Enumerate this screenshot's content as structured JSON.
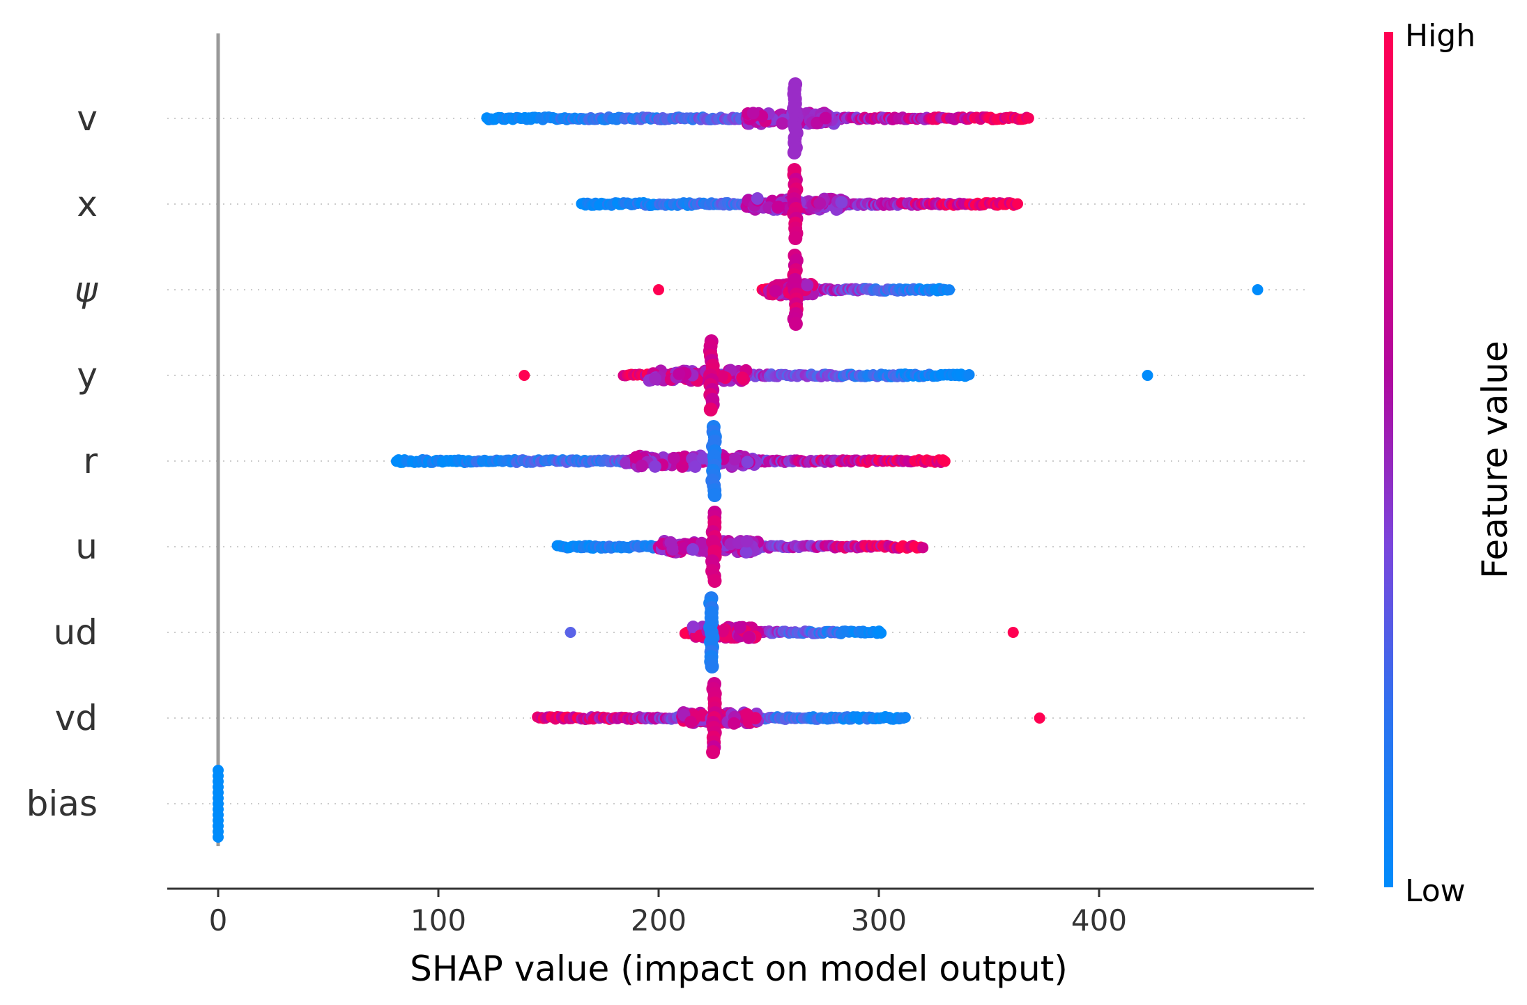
{
  "chart_data": {
    "type": "scatter",
    "subtype": "shap-beeswarm",
    "xlabel": "SHAP value (impact on model output)",
    "xlim": [
      -23,
      497
    ],
    "xticks": [
      0,
      100,
      200,
      300,
      400
    ],
    "tick_labels": [
      "0",
      "100",
      "200",
      "300",
      "400"
    ],
    "zero_line": 0,
    "features": [
      {
        "name": "v",
        "center": 262,
        "min": 122,
        "max": 368,
        "core_range": [
          240,
          280
        ],
        "low_side": "left",
        "outliers": []
      },
      {
        "name": "x",
        "center": 262,
        "min": 165,
        "max": 363,
        "core_range": [
          240,
          285
        ],
        "low_side": "left",
        "outliers": []
      },
      {
        "name": "ψ",
        "center": 262,
        "min": 247,
        "max": 332,
        "core_range": [
          250,
          270
        ],
        "low_side": "right",
        "outliers": [
          {
            "x": 200,
            "value": "high"
          },
          {
            "x": 472,
            "value": "low"
          }
        ]
      },
      {
        "name": "y",
        "center": 224,
        "min": 184,
        "max": 341,
        "core_range": [
          195,
          240
        ],
        "low_side": "right",
        "outliers": [
          {
            "x": 139,
            "value": "high"
          },
          {
            "x": 422,
            "value": "low"
          }
        ]
      },
      {
        "name": "r",
        "center": 225,
        "min": 81,
        "max": 330,
        "core_range": [
          185,
          245
        ],
        "low_side": "left",
        "outliers": []
      },
      {
        "name": "u",
        "center": 225,
        "min": 154,
        "max": 320,
        "core_range": [
          200,
          245
        ],
        "low_side": "left",
        "outliers": []
      },
      {
        "name": "ud",
        "center": 224,
        "min": 212,
        "max": 301,
        "core_range": [
          215,
          245
        ],
        "low_side": "right",
        "outliers": [
          {
            "x": 160,
            "value": "mid"
          },
          {
            "x": 361,
            "value": "high"
          }
        ]
      },
      {
        "name": "vd",
        "center": 225,
        "min": 145,
        "max": 312,
        "core_range": [
          210,
          245
        ],
        "low_side": "right",
        "outliers": [
          {
            "x": 373,
            "value": "high"
          }
        ]
      },
      {
        "name": "bias",
        "center": 0,
        "min": 0,
        "max": 0,
        "core_range": [
          0,
          0
        ],
        "low_side": "none",
        "outliers": []
      }
    ],
    "colorbar": {
      "title": "Feature value",
      "high_label": "High",
      "low_label": "Low",
      "colors": [
        "#ff0052",
        "#c4009a",
        "#8c3ad6",
        "#5a63e8",
        "#1e7ef2",
        "#008bfb"
      ]
    },
    "grid": "dotted-row-guides",
    "legend": "colorbar-right"
  }
}
